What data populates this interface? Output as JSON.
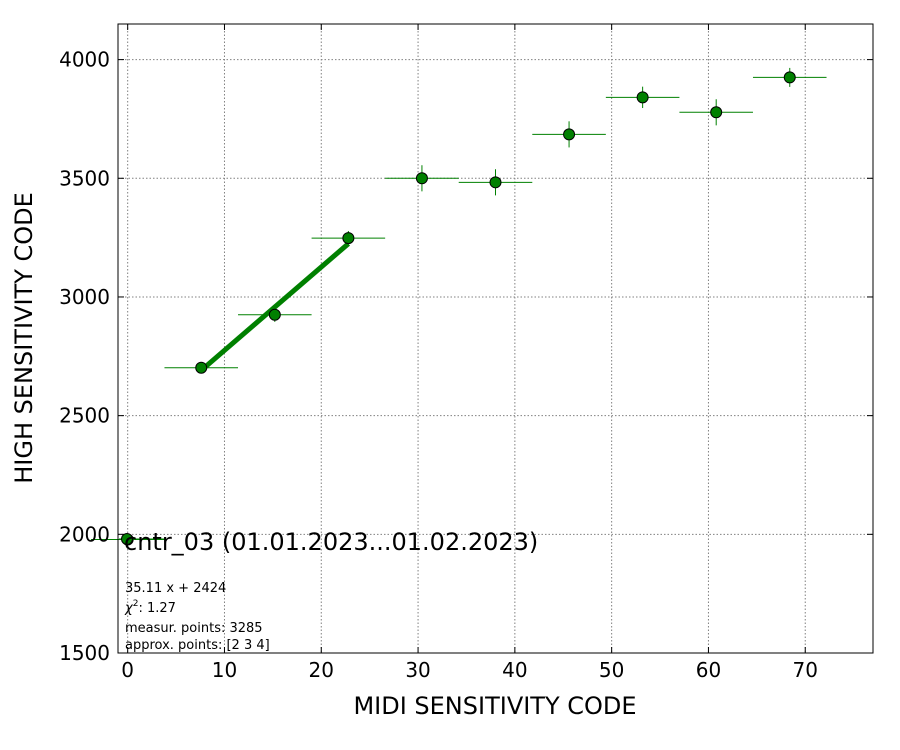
{
  "chart_data": {
    "type": "scatter",
    "xlabel": "MIDI SENSITIVITY CODE",
    "ylabel": "HIGH SENSITIVITY CODE",
    "xlim": [
      -1,
      77
    ],
    "ylim": [
      1500,
      4150
    ],
    "xticks": [
      0,
      10,
      20,
      30,
      40,
      50,
      60,
      70
    ],
    "yticks": [
      1500,
      2000,
      2500,
      3000,
      3500,
      4000
    ],
    "grid": true,
    "colors": {
      "marker": "#008000",
      "marker_edge": "#000000",
      "fit_line": "#008000",
      "grid": "#808080"
    },
    "series": [
      {
        "name": "cntr_03 (01.01.2023...01.02.2023)",
        "points": [
          {
            "x": 0.0,
            "y": 1978,
            "xerr": 3.8,
            "yerr": 0
          },
          {
            "x": 7.6,
            "y": 2702,
            "xerr": 3.8,
            "yerr": 15
          },
          {
            "x": 15.2,
            "y": 2925,
            "xerr": 3.8,
            "yerr": 30
          },
          {
            "x": 22.8,
            "y": 3248,
            "xerr": 3.8,
            "yerr": 30
          },
          {
            "x": 30.4,
            "y": 3500,
            "xerr": 3.8,
            "yerr": 55
          },
          {
            "x": 38.0,
            "y": 3483,
            "xerr": 3.8,
            "yerr": 55
          },
          {
            "x": 45.6,
            "y": 3685,
            "xerr": 3.8,
            "yerr": 55
          },
          {
            "x": 53.2,
            "y": 3841,
            "xerr": 3.8,
            "yerr": 45
          },
          {
            "x": 60.8,
            "y": 3778,
            "xerr": 3.8,
            "yerr": 55
          },
          {
            "x": 68.4,
            "y": 3925,
            "xerr": 3.8,
            "yerr": 40
          }
        ]
      }
    ],
    "fit": {
      "x_range": [
        7.6,
        22.8
      ],
      "slope": 35.11,
      "intercept": 2424
    },
    "legend": {
      "label": "cntr_03 (01.01.2023...01.02.2023)",
      "placement": "lower-left"
    },
    "annotations": [
      {
        "kind": "text",
        "text": "35.11 x + 2424"
      },
      {
        "kind": "chi2",
        "prefix": "χ",
        "sup": "2",
        "text": ": 1.27"
      },
      {
        "kind": "text",
        "text": "measur. points: 3285"
      },
      {
        "kind": "text",
        "text": "approx. points: [2 3 4]"
      }
    ]
  }
}
